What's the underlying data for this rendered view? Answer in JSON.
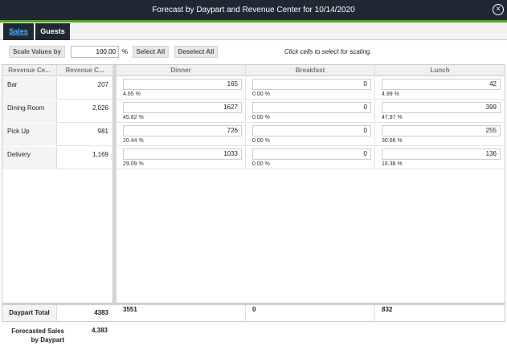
{
  "window": {
    "title": "Forecast by Daypart and Revenue Center for 10/14/2020"
  },
  "tabs": [
    {
      "label": "Sales",
      "active": true
    },
    {
      "label": "Guests",
      "active": false
    }
  ],
  "toolbar": {
    "scale_button": "Scale Values by",
    "scale_value": "100.00",
    "percent_sign": "%",
    "select_all": "Select All",
    "deselect_all": "Deselect All",
    "hint": "Click cells to select for scaling."
  },
  "columns": {
    "left": [
      "Revenue Ce...",
      "Revenue C..."
    ],
    "dayparts": [
      "Dinner",
      "Breakfast",
      "Lunch"
    ]
  },
  "rows": [
    {
      "name": "Bar",
      "total": "207",
      "cells": [
        {
          "value": "165",
          "pct": "4.65 %"
        },
        {
          "value": "0",
          "pct": "0.00 %"
        },
        {
          "value": "42",
          "pct": "4.99 %"
        }
      ]
    },
    {
      "name": "Dining Room",
      "total": "2,026",
      "cells": [
        {
          "value": "1627",
          "pct": "45.82 %"
        },
        {
          "value": "0",
          "pct": "0.00 %"
        },
        {
          "value": "399",
          "pct": "47.97 %"
        }
      ]
    },
    {
      "name": "Pick Up",
      "total": "981",
      "cells": [
        {
          "value": "726",
          "pct": "20.44 %"
        },
        {
          "value": "0",
          "pct": "0.00 %"
        },
        {
          "value": "255",
          "pct": "30.66 %"
        }
      ]
    },
    {
      "name": "Delivery",
      "total": "1,169",
      "cells": [
        {
          "value": "1033",
          "pct": "29.09 %"
        },
        {
          "value": "0",
          "pct": "0.00 %"
        },
        {
          "value": "136",
          "pct": "16.38 %"
        }
      ]
    }
  ],
  "totals": {
    "label": "Daypart Total",
    "grand": "4383",
    "dayparts": [
      "3551",
      "0",
      "832"
    ]
  },
  "footer": {
    "label": "Forecasted Sales by Daypart",
    "value": "4,383"
  },
  "colors": {
    "titlebar": "#1f2833",
    "accent_green": "#5aa02c",
    "tab_active_text": "#5ab0ff"
  },
  "icons": {
    "close": "close-circle-icon"
  }
}
